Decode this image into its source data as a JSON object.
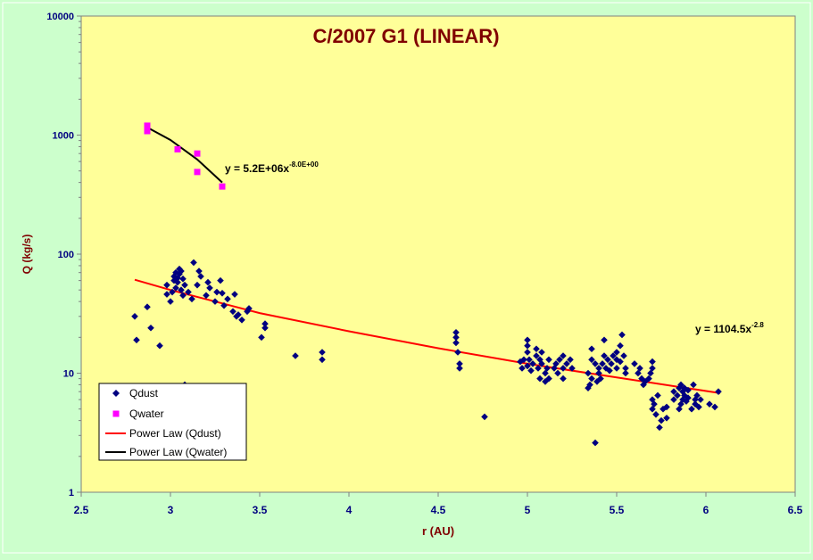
{
  "chart_data": {
    "type": "scatter",
    "title": "C/2007 G1 (LINEAR)",
    "xlabel": "r (AU)",
    "ylabel": "Q (kg/s)",
    "xlim": [
      2.5,
      6.5
    ],
    "ylim": [
      1,
      10000
    ],
    "yscale": "log",
    "x_ticks": [
      "2.5",
      "3",
      "3.5",
      "4",
      "4.5",
      "5",
      "5.5",
      "6",
      "6.5"
    ],
    "y_ticks": [
      "1",
      "10",
      "100",
      "1000",
      "10000"
    ],
    "grid": false,
    "legend_position": "bottom-left",
    "colors": {
      "page_background": "#ccffcc",
      "plot_background": "#ffff99",
      "qdust": "#000080",
      "qwater": "#ff00ff",
      "fit_dust": "#ff0000",
      "fit_water": "#000000",
      "title": "#800000",
      "axis_text": "#000080",
      "axis_label": "#800000"
    },
    "series": [
      {
        "name": "Qdust",
        "marker": "diamond",
        "points": [
          [
            2.8,
            30
          ],
          [
            2.81,
            19
          ],
          [
            2.87,
            36
          ],
          [
            2.89,
            24
          ],
          [
            2.94,
            17
          ],
          [
            2.98,
            46
          ],
          [
            2.98,
            55
          ],
          [
            3.0,
            40
          ],
          [
            3.01,
            48
          ],
          [
            3.02,
            60
          ],
          [
            3.02,
            65
          ],
          [
            3.03,
            52
          ],
          [
            3.03,
            70
          ],
          [
            3.04,
            58
          ],
          [
            3.04,
            63
          ],
          [
            3.05,
            75
          ],
          [
            3.05,
            68
          ],
          [
            3.06,
            50
          ],
          [
            3.06,
            72
          ],
          [
            3.07,
            62
          ],
          [
            3.07,
            45
          ],
          [
            3.08,
            55
          ],
          [
            3.08,
            8
          ],
          [
            3.1,
            48
          ],
          [
            3.12,
            42
          ],
          [
            3.13,
            85
          ],
          [
            3.15,
            55
          ],
          [
            3.16,
            72
          ],
          [
            3.17,
            65
          ],
          [
            3.2,
            45
          ],
          [
            3.21,
            58
          ],
          [
            3.22,
            52
          ],
          [
            3.25,
            40
          ],
          [
            3.26,
            48
          ],
          [
            3.28,
            60
          ],
          [
            3.29,
            47
          ],
          [
            3.3,
            37
          ],
          [
            3.32,
            42
          ],
          [
            3.35,
            33
          ],
          [
            3.36,
            46
          ],
          [
            3.37,
            30
          ],
          [
            3.38,
            31
          ],
          [
            3.4,
            28
          ],
          [
            3.43,
            33
          ],
          [
            3.44,
            35
          ],
          [
            3.51,
            20
          ],
          [
            3.53,
            24
          ],
          [
            3.53,
            26
          ],
          [
            3.7,
            14
          ],
          [
            3.85,
            13
          ],
          [
            3.85,
            15
          ],
          [
            4.6,
            18
          ],
          [
            4.6,
            20
          ],
          [
            4.6,
            22
          ],
          [
            4.61,
            15
          ],
          [
            4.62,
            11
          ],
          [
            4.62,
            12
          ],
          [
            4.76,
            4.3
          ],
          [
            4.96,
            12.5
          ],
          [
            4.97,
            11
          ],
          [
            4.98,
            13
          ],
          [
            5.0,
            11.5
          ],
          [
            5.0,
            15
          ],
          [
            5.0,
            17
          ],
          [
            5.0,
            19
          ],
          [
            5.01,
            13
          ],
          [
            5.02,
            10.5
          ],
          [
            5.03,
            12
          ],
          [
            5.05,
            14
          ],
          [
            5.05,
            16
          ],
          [
            5.06,
            11
          ],
          [
            5.07,
            9
          ],
          [
            5.07,
            13
          ],
          [
            5.08,
            12
          ],
          [
            5.08,
            15
          ],
          [
            5.1,
            8.5
          ],
          [
            5.1,
            10
          ],
          [
            5.11,
            11
          ],
          [
            5.12,
            13
          ],
          [
            5.12,
            9
          ],
          [
            5.15,
            11
          ],
          [
            5.16,
            12
          ],
          [
            5.17,
            10
          ],
          [
            5.18,
            13
          ],
          [
            5.2,
            9
          ],
          [
            5.2,
            14
          ],
          [
            5.2,
            11
          ],
          [
            5.22,
            12
          ],
          [
            5.24,
            13
          ],
          [
            5.25,
            11
          ],
          [
            5.34,
            10
          ],
          [
            5.34,
            7.5
          ],
          [
            5.35,
            8
          ],
          [
            5.36,
            9
          ],
          [
            5.36,
            13
          ],
          [
            5.36,
            16
          ],
          [
            5.38,
            2.6
          ],
          [
            5.38,
            12
          ],
          [
            5.39,
            8.5
          ],
          [
            5.4,
            10
          ],
          [
            5.4,
            11
          ],
          [
            5.41,
            9
          ],
          [
            5.42,
            12
          ],
          [
            5.43,
            14
          ],
          [
            5.43,
            19
          ],
          [
            5.44,
            11
          ],
          [
            5.45,
            13
          ],
          [
            5.46,
            10.5
          ],
          [
            5.47,
            12
          ],
          [
            5.48,
            14
          ],
          [
            5.5,
            11
          ],
          [
            5.5,
            15
          ],
          [
            5.5,
            13
          ],
          [
            5.52,
            12.5
          ],
          [
            5.52,
            17
          ],
          [
            5.53,
            21
          ],
          [
            5.54,
            14
          ],
          [
            5.55,
            11
          ],
          [
            5.55,
            10
          ],
          [
            5.6,
            12
          ],
          [
            5.62,
            10
          ],
          [
            5.63,
            11
          ],
          [
            5.64,
            9
          ],
          [
            5.65,
            8
          ],
          [
            5.66,
            8.5
          ],
          [
            5.68,
            9
          ],
          [
            5.69,
            10
          ],
          [
            5.7,
            11
          ],
          [
            5.7,
            12.5
          ],
          [
            5.7,
            6
          ],
          [
            5.7,
            5
          ],
          [
            5.71,
            5.5
          ],
          [
            5.72,
            4.5
          ],
          [
            5.73,
            6.5
          ],
          [
            5.74,
            3.5
          ],
          [
            5.75,
            4
          ],
          [
            5.76,
            5
          ],
          [
            5.78,
            4.2
          ],
          [
            5.78,
            5.2
          ],
          [
            5.82,
            6
          ],
          [
            5.82,
            7
          ],
          [
            5.84,
            6.5
          ],
          [
            5.85,
            7.5
          ],
          [
            5.85,
            5
          ],
          [
            5.86,
            8
          ],
          [
            5.86,
            5.5
          ],
          [
            5.87,
            7
          ],
          [
            5.87,
            6
          ],
          [
            5.88,
            6.5
          ],
          [
            5.88,
            7.5
          ],
          [
            5.89,
            5.8
          ],
          [
            5.9,
            6.2
          ],
          [
            5.9,
            7.2
          ],
          [
            5.92,
            5
          ],
          [
            5.93,
            8
          ],
          [
            5.94,
            6
          ],
          [
            5.94,
            5.5
          ],
          [
            5.95,
            6.5
          ],
          [
            5.96,
            5.2
          ],
          [
            5.97,
            6
          ],
          [
            6.02,
            5.5
          ],
          [
            6.05,
            5.2
          ],
          [
            6.07,
            7
          ]
        ]
      },
      {
        "name": "Qwater",
        "marker": "square",
        "points": [
          [
            2.87,
            1200
          ],
          [
            2.87,
            1080
          ],
          [
            3.04,
            760
          ],
          [
            3.15,
            700
          ],
          [
            3.15,
            490
          ],
          [
            3.29,
            370
          ]
        ]
      },
      {
        "name": "Power Law (Qdust)",
        "kind": "line",
        "points": [
          [
            2.8,
            61
          ],
          [
            3.0,
            50
          ],
          [
            3.5,
            32
          ],
          [
            4.0,
            22.5
          ],
          [
            4.5,
            16.2
          ],
          [
            5.0,
            12
          ],
          [
            5.5,
            9.2
          ],
          [
            6.08,
            6.8
          ]
        ]
      },
      {
        "name": "Power Law (Qwater)",
        "kind": "line",
        "points": [
          [
            2.87,
            1160
          ],
          [
            3.0,
            910
          ],
          [
            3.15,
            625
          ],
          [
            3.29,
            400
          ]
        ]
      }
    ],
    "annotations": [
      {
        "text": "y = 5.2E+06x",
        "sup": "-8.0E+00",
        "near_series": "Power Law (Qwater)"
      },
      {
        "text": "y = 1104.5x",
        "sup": "-2.8",
        "near_series": "Power Law (Qdust)"
      }
    ]
  }
}
